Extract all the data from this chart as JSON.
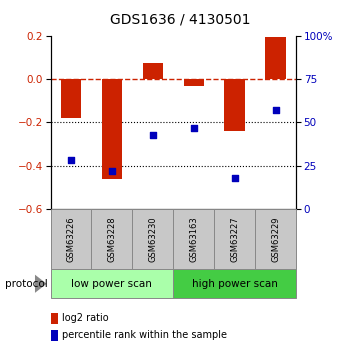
{
  "title": "GDS1636 / 4130501",
  "samples": [
    "GSM63226",
    "GSM63228",
    "GSM63230",
    "GSM63163",
    "GSM63227",
    "GSM63229"
  ],
  "log2_ratio": [
    -0.18,
    -0.46,
    0.075,
    -0.03,
    -0.24,
    0.195
  ],
  "percentile_rank": [
    28,
    22,
    43,
    47,
    18,
    57
  ],
  "bar_color": "#cc2200",
  "dot_color": "#0000bb",
  "ylim_left": [
    -0.6,
    0.2
  ],
  "ylim_right": [
    0,
    100
  ],
  "yticks_left": [
    0.2,
    0.0,
    -0.2,
    -0.4,
    -0.6
  ],
  "yticks_right": [
    100,
    75,
    50,
    25,
    0
  ],
  "hlines_dotted": [
    -0.2,
    -0.4
  ],
  "protocol_groups": [
    {
      "label": "low power scan",
      "indices": [
        0,
        1,
        2
      ],
      "color": "#aaffaa"
    },
    {
      "label": "high power scan",
      "indices": [
        3,
        4,
        5
      ],
      "color": "#44cc44"
    }
  ],
  "legend_items": [
    {
      "label": "log2 ratio",
      "color": "#cc2200"
    },
    {
      "label": "percentile rank within the sample",
      "color": "#0000bb"
    }
  ],
  "protocol_label": "protocol",
  "background_color": "#ffffff",
  "sample_box_color": "#c8c8c8"
}
